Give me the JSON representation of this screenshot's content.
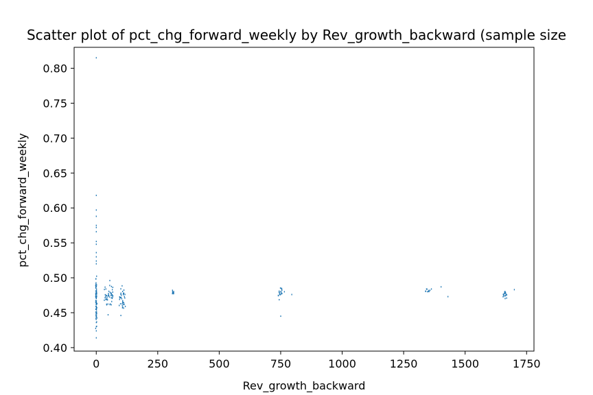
{
  "chart_data": {
    "type": "scatter",
    "title": "Scatter plot of pct_chg_forward_weekly by Rev_growth_backward (sample size",
    "xlabel": "Rev_growth_backward",
    "ylabel": "pct_chg_forward_weekly",
    "xlim": [
      -90,
      1780
    ],
    "ylim": [
      0.395,
      0.83
    ],
    "xticks": [
      0,
      250,
      500,
      750,
      1000,
      1250,
      1500,
      1750
    ],
    "yticks": [
      0.4,
      0.45,
      0.5,
      0.55,
      0.6,
      0.65,
      0.7,
      0.75,
      0.8
    ],
    "ytick_labels": [
      "0.40",
      "0.45",
      "0.50",
      "0.55",
      "0.60",
      "0.65",
      "0.70",
      "0.75",
      "0.80"
    ],
    "grid": false,
    "marker_color": "#1f77b4",
    "clusters": [
      {
        "x_center": 0,
        "x_spread": 3,
        "y_min": 0.415,
        "y_max": 0.515,
        "n": 70
      },
      {
        "x_center": 50,
        "x_spread": 18,
        "y_min": 0.455,
        "y_max": 0.495,
        "n": 45
      },
      {
        "x_center": 105,
        "x_spread": 12,
        "y_min": 0.447,
        "y_max": 0.493,
        "n": 35
      },
      {
        "x_center": 312,
        "x_spread": 3,
        "y_min": 0.472,
        "y_max": 0.484,
        "n": 10
      },
      {
        "x_center": 748,
        "x_spread": 8,
        "y_min": 0.466,
        "y_max": 0.492,
        "n": 20
      },
      {
        "x_center": 1352,
        "x_spread": 14,
        "y_min": 0.472,
        "y_max": 0.493,
        "n": 10
      },
      {
        "x_center": 1662,
        "x_spread": 8,
        "y_min": 0.469,
        "y_max": 0.485,
        "n": 16
      }
    ],
    "points": [
      {
        "x": 0,
        "y": 0.815
      },
      {
        "x": 0,
        "y": 0.618
      },
      {
        "x": 0,
        "y": 0.597
      },
      {
        "x": 0,
        "y": 0.588
      },
      {
        "x": 0,
        "y": 0.575
      },
      {
        "x": 0,
        "y": 0.572
      },
      {
        "x": 0,
        "y": 0.566
      },
      {
        "x": 0,
        "y": 0.552
      },
      {
        "x": 0,
        "y": 0.548
      },
      {
        "x": 0,
        "y": 0.536
      },
      {
        "x": 0,
        "y": 0.53
      },
      {
        "x": 0,
        "y": 0.524
      },
      {
        "x": 0,
        "y": 0.52
      },
      {
        "x": 0,
        "y": 0.444
      },
      {
        "x": 0,
        "y": 0.436
      },
      {
        "x": 0,
        "y": 0.43
      },
      {
        "x": 0,
        "y": 0.424
      },
      {
        "x": 0,
        "y": 0.414
      },
      {
        "x": 48,
        "y": 0.447
      },
      {
        "x": 55,
        "y": 0.496
      },
      {
        "x": 100,
        "y": 0.446
      },
      {
        "x": 118,
        "y": 0.459
      },
      {
        "x": 750,
        "y": 0.445
      },
      {
        "x": 765,
        "y": 0.48
      },
      {
        "x": 795,
        "y": 0.476
      },
      {
        "x": 1402,
        "y": 0.487
      },
      {
        "x": 1430,
        "y": 0.473
      },
      {
        "x": 1700,
        "y": 0.483
      }
    ]
  }
}
